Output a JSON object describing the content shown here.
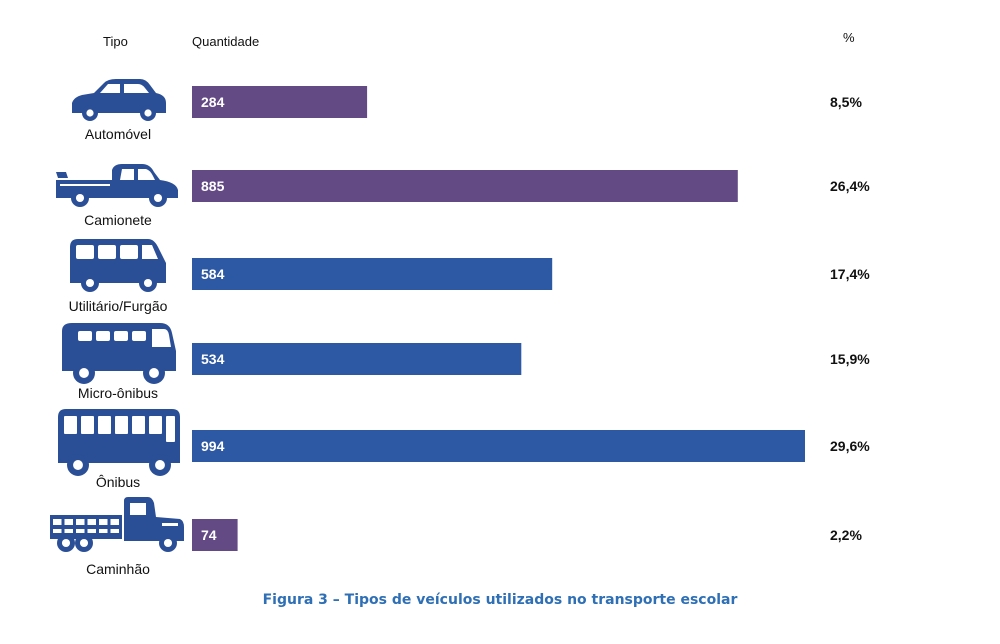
{
  "header": {
    "tipo": "Tipo",
    "quantidade": "Quantidade",
    "percent": "%"
  },
  "caption": "Figura 3 – Tipos de veículos utilizados no transporte escolar",
  "colors": {
    "purple": "#634a85",
    "blue": "#2d58a3",
    "icon": "#2b4f96",
    "caption": "#2e6fb5"
  },
  "chart_data": {
    "type": "bar",
    "orientation": "horizontal",
    "title": "Figura 3 – Tipos de veículos utilizados no transporte escolar",
    "xlabel": "Quantidade",
    "ylabel": "Tipo",
    "categories": [
      "Automóvel",
      "Camionete",
      "Utilitário/Furgão",
      "Micro-ônibus",
      "Ônibus",
      "Caminhão"
    ],
    "values": [
      284,
      885,
      584,
      534,
      994,
      74
    ],
    "value_labels": [
      "284",
      "885",
      "584",
      "534",
      "994",
      "74"
    ],
    "percentages": [
      "8,5%",
      "26,4%",
      "17,4%",
      "15,9%",
      "29,6%",
      "2,2%"
    ],
    "bar_colors": [
      "#634a85",
      "#634a85",
      "#2d58a3",
      "#2d58a3",
      "#2d58a3",
      "#634a85"
    ],
    "icons": [
      "car-icon",
      "pickup-truck-icon",
      "van-icon",
      "minibus-icon",
      "bus-icon",
      "truck-icon"
    ],
    "xlim": [
      0,
      994
    ]
  }
}
